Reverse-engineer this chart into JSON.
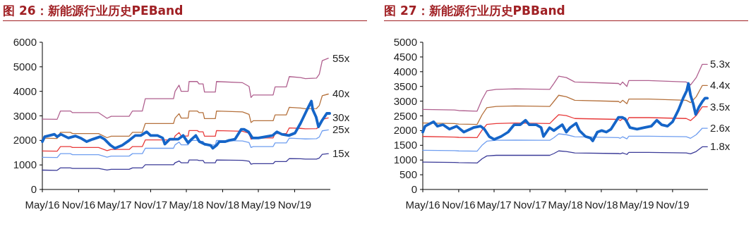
{
  "chart_data": [
    {
      "type": "line",
      "title": "图 26：新能源行业历史PEBand",
      "xlim": [
        "2016-05-01",
        "2020-04-30"
      ],
      "ylim": [
        0,
        6000
      ],
      "yticks": [
        0,
        1000,
        2000,
        3000,
        4000,
        5000,
        6000
      ],
      "xticks": [
        {
          "value": "2016-05-01",
          "label": "May/16"
        },
        {
          "value": "2016-11-01",
          "label": "Nov/16"
        },
        {
          "value": "2017-05-01",
          "label": "May/17"
        },
        {
          "value": "2017-11-01",
          "label": "Nov/17"
        },
        {
          "value": "2018-05-01",
          "label": "May/18"
        },
        {
          "value": "2018-11-01",
          "label": "Nov/18"
        },
        {
          "value": "2019-05-01",
          "label": "May/19"
        },
        {
          "value": "2019-11-01",
          "label": "Nov/19"
        }
      ],
      "legend": false,
      "grid": false,
      "x": [
        "2016-05-01",
        "2016-07-15",
        "2016-08-01",
        "2016-09-20",
        "2016-10-01",
        "2017-02-10",
        "2017-03-25",
        "2017-04-15",
        "2017-07-15",
        "2017-08-01",
        "2017-09-20",
        "2017-10-05",
        "2018-02-25",
        "2018-03-05",
        "2018-03-25",
        "2018-04-05",
        "2018-05-10",
        "2018-05-15",
        "2018-06-25",
        "2018-07-05",
        "2018-07-25",
        "2018-08-01",
        "2018-09-25",
        "2018-10-01",
        "2019-02-10",
        "2019-03-15",
        "2019-03-25",
        "2019-04-05",
        "2019-07-15",
        "2019-07-25",
        "2019-09-20",
        "2019-10-05",
        "2019-12-01",
        "2019-12-25",
        "2020-02-20",
        "2020-03-05",
        "2020-03-20",
        "2020-04-20"
      ],
      "series": [
        {
          "name": "55x",
          "color": "#b0608f",
          "values": [
            2870,
            2860,
            3200,
            3200,
            3130,
            3130,
            2900,
            2980,
            2980,
            3200,
            3200,
            3700,
            3700,
            4000,
            4250,
            4000,
            4000,
            4400,
            4400,
            4300,
            4300,
            3970,
            3970,
            4400,
            4350,
            4200,
            3750,
            3850,
            3850,
            4180,
            4180,
            4600,
            4560,
            4520,
            4540,
            4700,
            5250,
            5350
          ]
        },
        {
          "name": "40x",
          "color": "#b5713c",
          "values": [
            2090,
            2080,
            2330,
            2330,
            2280,
            2280,
            2110,
            2170,
            2170,
            2330,
            2330,
            2690,
            2690,
            2910,
            3090,
            2910,
            2910,
            3200,
            3200,
            3130,
            3130,
            2890,
            2890,
            3200,
            3160,
            3060,
            2730,
            2800,
            2800,
            3040,
            3040,
            3350,
            3320,
            3290,
            3300,
            3420,
            3820,
            3890
          ]
        },
        {
          "name": "30x",
          "color": "#e83a3a",
          "values": [
            1570,
            1560,
            1750,
            1750,
            1710,
            1710,
            1580,
            1630,
            1630,
            1750,
            1750,
            2020,
            2020,
            2180,
            2320,
            2180,
            2180,
            2400,
            2400,
            2350,
            2350,
            2170,
            2170,
            2400,
            2370,
            2290,
            2050,
            2100,
            2100,
            2280,
            2280,
            2510,
            2490,
            2470,
            2480,
            2560,
            2860,
            2920
          ]
        },
        {
          "name": "25x",
          "color": "#6f9ef0",
          "values": [
            1310,
            1300,
            1460,
            1460,
            1420,
            1420,
            1320,
            1360,
            1360,
            1460,
            1460,
            1680,
            1680,
            1820,
            1930,
            1820,
            1820,
            2000,
            2000,
            1960,
            1960,
            1810,
            1810,
            2000,
            1980,
            1910,
            1710,
            1750,
            1750,
            1900,
            1900,
            2090,
            2070,
            2060,
            2070,
            2140,
            2390,
            2430
          ]
        },
        {
          "name": "15x",
          "color": "#3b3b98",
          "values": [
            790,
            780,
            880,
            880,
            860,
            860,
            790,
            820,
            820,
            880,
            880,
            1010,
            1010,
            1090,
            1160,
            1090,
            1090,
            1200,
            1200,
            1180,
            1180,
            1090,
            1090,
            1200,
            1190,
            1150,
            1030,
            1050,
            1050,
            1140,
            1140,
            1260,
            1250,
            1240,
            1240,
            1280,
            1430,
            1460
          ]
        },
        {
          "color": "#1565c8",
          "x": [
            "2016-05-01",
            "2016-05-13",
            "2016-07-01",
            "2016-07-15",
            "2016-08-03",
            "2016-09-10",
            "2016-10-15",
            "2016-11-15",
            "2016-12-12",
            "2017-01-12",
            "2017-02-18",
            "2017-03-12",
            "2017-04-12",
            "2017-05-04",
            "2017-06-10",
            "2017-07-15",
            "2017-08-15",
            "2017-09-12",
            "2017-10-12",
            "2017-11-01",
            "2017-12-06",
            "2018-01-01",
            "2018-01-12",
            "2018-02-06",
            "2018-03-21",
            "2018-04-15",
            "2018-05-10",
            "2018-05-28",
            "2018-06-18",
            "2018-07-06",
            "2018-08-01",
            "2018-09-01",
            "2018-09-12",
            "2018-10-01",
            "2018-10-15",
            "2018-11-15",
            "2018-12-03",
            "2019-01-03",
            "2019-02-03",
            "2019-02-18",
            "2019-03-12",
            "2019-04-01",
            "2019-05-01",
            "2019-06-06",
            "2019-07-12",
            "2019-08-03",
            "2019-08-28",
            "2019-10-03",
            "2019-11-03",
            "2019-12-01",
            "2019-12-25",
            "2020-01-06",
            "2020-01-25",
            "2020-02-01",
            "2020-02-18",
            "2020-03-01",
            "2020-03-18",
            "2020-04-12",
            "2020-04-27"
          ],
          "values": [
            1950,
            2150,
            2250,
            2150,
            2250,
            2100,
            2180,
            2080,
            1950,
            2050,
            2150,
            2050,
            1800,
            1680,
            1800,
            2000,
            2200,
            2200,
            2350,
            2200,
            2200,
            2100,
            1850,
            2050,
            2050,
            2200,
            1900,
            2050,
            2200,
            1950,
            1850,
            1800,
            1680,
            1800,
            1950,
            1950,
            2000,
            2050,
            2450,
            2450,
            2350,
            2100,
            2100,
            2150,
            2200,
            2350,
            2250,
            2200,
            2300,
            2700,
            3100,
            3300,
            3600,
            3250,
            2950,
            2550,
            2800,
            3100,
            3100
          ]
        }
      ]
    },
    {
      "type": "line",
      "title": "图 27：新能源行业历史PBBand",
      "xlim": [
        "2016-05-01",
        "2020-04-30"
      ],
      "ylim": [
        0,
        5000
      ],
      "yticks": [
        0,
        500,
        1000,
        1500,
        2000,
        2500,
        3000,
        3500,
        4000,
        4500,
        5000
      ],
      "xticks": [
        {
          "value": "2016-05-01",
          "label": "May/16"
        },
        {
          "value": "2016-11-01",
          "label": "Nov/16"
        },
        {
          "value": "2017-05-01",
          "label": "May/17"
        },
        {
          "value": "2017-11-01",
          "label": "Nov/17"
        },
        {
          "value": "2018-05-01",
          "label": "May/18"
        },
        {
          "value": "2018-11-01",
          "label": "Nov/18"
        },
        {
          "value": "2019-05-01",
          "label": "May/19"
        },
        {
          "value": "2019-11-01",
          "label": "Nov/19"
        }
      ],
      "legend": false,
      "grid": false,
      "x": [
        "2016-05-01",
        "2016-10-10",
        "2016-11-01",
        "2017-02-03",
        "2017-02-28",
        "2017-03-25",
        "2017-05-12",
        "2017-08-18",
        "2018-02-10",
        "2018-03-03",
        "2018-03-28",
        "2018-05-06",
        "2018-06-18",
        "2019-01-28",
        "2019-02-06",
        "2019-02-18",
        "2019-03-12",
        "2019-03-22",
        "2019-07-01",
        "2020-01-10",
        "2020-02-01",
        "2020-03-01",
        "2020-04-01",
        "2020-04-27"
      ],
      "series": [
        {
          "name": "5.3x",
          "color": "#b0608f",
          "values": [
            2720,
            2700,
            2680,
            2660,
            3050,
            3350,
            3400,
            3420,
            3400,
            3600,
            3850,
            3800,
            3650,
            3600,
            3550,
            3650,
            3500,
            3700,
            3700,
            3650,
            3550,
            3800,
            4250,
            4250
          ]
        },
        {
          "name": "4.4x",
          "color": "#b5713c",
          "values": [
            2260,
            2240,
            2220,
            2210,
            2530,
            2780,
            2820,
            2840,
            2820,
            2990,
            3200,
            3150,
            3030,
            2990,
            2950,
            3030,
            2910,
            3070,
            3070,
            3030,
            2950,
            3150,
            3530,
            3530
          ]
        },
        {
          "name": "3.5x",
          "color": "#e83a3a",
          "values": [
            1800,
            1780,
            1770,
            1760,
            2010,
            2210,
            2240,
            2260,
            2240,
            2380,
            2540,
            2510,
            2410,
            2380,
            2340,
            2410,
            2310,
            2440,
            2440,
            2410,
            2340,
            2510,
            2810,
            2810
          ]
        },
        {
          "name": "2.6x",
          "color": "#6f9ef0",
          "values": [
            1330,
            1320,
            1310,
            1300,
            1500,
            1640,
            1670,
            1680,
            1670,
            1760,
            1890,
            1860,
            1790,
            1760,
            1740,
            1790,
            1720,
            1810,
            1810,
            1790,
            1740,
            1860,
            2080,
            2080
          ]
        },
        {
          "name": "1.8x",
          "color": "#3b3b98",
          "values": [
            930,
            920,
            910,
            900,
            1040,
            1140,
            1160,
            1160,
            1160,
            1220,
            1310,
            1290,
            1240,
            1220,
            1210,
            1240,
            1190,
            1260,
            1260,
            1240,
            1210,
            1290,
            1450,
            1450
          ]
        },
        {
          "color": "#1565c8",
          "x": [
            "2016-05-01",
            "2016-05-13",
            "2016-06-25",
            "2016-07-15",
            "2016-08-12",
            "2016-09-15",
            "2016-10-21",
            "2016-11-27",
            "2017-01-15",
            "2017-02-21",
            "2017-03-12",
            "2017-04-06",
            "2017-05-01",
            "2017-06-06",
            "2017-07-12",
            "2017-08-12",
            "2017-09-12",
            "2017-10-09",
            "2017-10-28",
            "2017-12-03",
            "2017-12-28",
            "2018-01-09",
            "2018-02-09",
            "2018-03-03",
            "2018-04-15",
            "2018-05-06",
            "2018-05-25",
            "2018-06-25",
            "2018-07-12",
            "2018-08-12",
            "2018-09-06",
            "2018-09-18",
            "2018-10-12",
            "2018-11-03",
            "2018-11-27",
            "2018-12-21",
            "2019-01-28",
            "2019-02-15",
            "2019-03-03",
            "2019-03-28",
            "2019-05-03",
            "2019-06-09",
            "2019-07-15",
            "2019-08-12",
            "2019-09-06",
            "2019-10-06",
            "2019-11-01",
            "2019-12-01",
            "2019-12-25",
            "2020-01-12",
            "2020-01-21",
            "2020-02-01",
            "2020-02-15",
            "2020-02-27",
            "2020-03-15",
            "2020-04-03",
            "2020-04-15",
            "2020-04-27"
          ],
          "values": [
            1950,
            2150,
            2300,
            2150,
            2200,
            2050,
            2150,
            1950,
            2100,
            2150,
            2050,
            1800,
            1700,
            1800,
            1950,
            2200,
            2200,
            2350,
            2200,
            2200,
            2100,
            1800,
            2100,
            2000,
            2200,
            1950,
            2100,
            2250,
            2000,
            1800,
            1750,
            1650,
            1950,
            2000,
            1950,
            2050,
            2450,
            2450,
            2400,
            2100,
            2050,
            2100,
            2150,
            2350,
            2200,
            2150,
            2300,
            2700,
            3100,
            3350,
            3600,
            3200,
            2900,
            2550,
            2800,
            3000,
            3100,
            3100
          ]
        }
      ]
    }
  ]
}
